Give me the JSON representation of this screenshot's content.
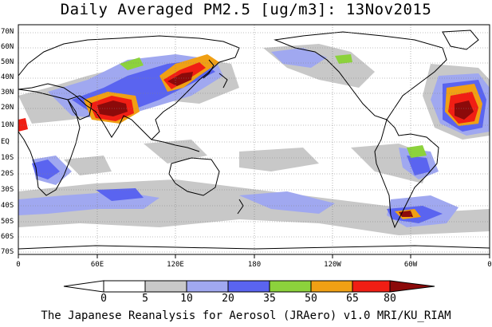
{
  "title": "Daily Averaged PM2.5 [ug/m3]: 13Nov2015",
  "footer": "The Japanese Reanalysis for Aerosol (JRAero) v1.0 MRI/KU_RIAM",
  "lat_labels": [
    "70N",
    "60N",
    "50N",
    "40N",
    "30N",
    "20N",
    "10N",
    "EQ",
    "10S",
    "20S",
    "30S",
    "40S",
    "50S",
    "60S",
    "70S"
  ],
  "lon_labels": [
    "0",
    "60E",
    "120E",
    "180",
    "120W",
    "60W",
    "0"
  ],
  "colorbar": {
    "levels": [
      "0",
      "5",
      "10",
      "20",
      "35",
      "50",
      "65",
      "80"
    ],
    "colors": [
      "#ffffff",
      "#c8c8c8",
      "#a0a8f0",
      "#5a64f0",
      "#8cd23c",
      "#f0a014",
      "#f01e14",
      "#8c0a0a"
    ]
  }
}
